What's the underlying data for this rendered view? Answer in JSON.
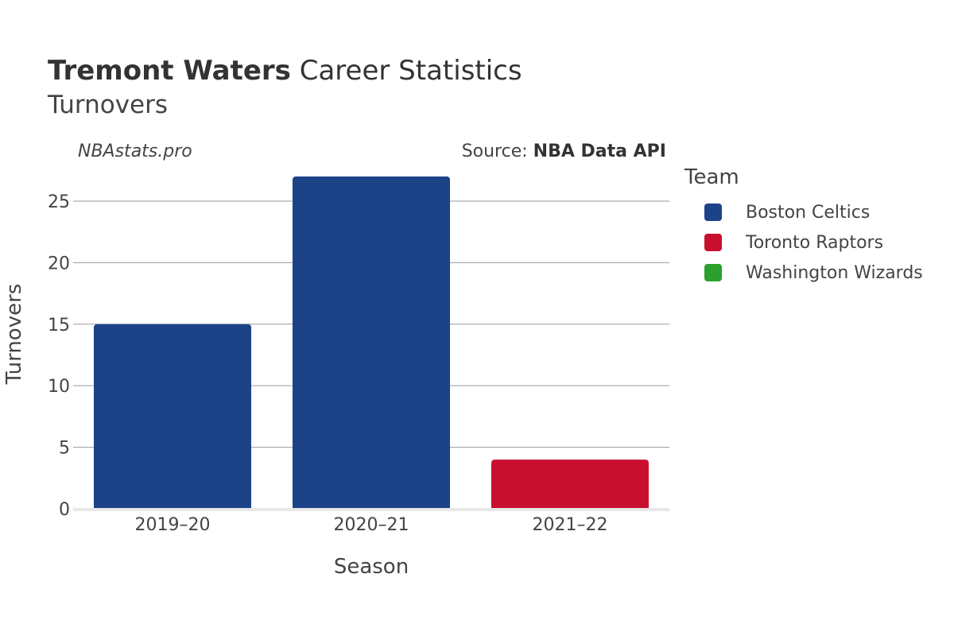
{
  "header": {
    "player": "Tremont Waters",
    "title_rest": "Career Statistics",
    "subtitle": "Turnovers"
  },
  "watermark": "NBAstats.pro",
  "source": {
    "prefix": "Source: ",
    "name": "NBA Data API"
  },
  "legend": {
    "title": "Team",
    "items": [
      {
        "label": "Boston Celtics",
        "color": "#1c4387"
      },
      {
        "label": "Toronto Raptors",
        "color": "#c8102e"
      },
      {
        "label": "Washington Wizards",
        "color": "#2ca02c"
      }
    ]
  },
  "chart_data": {
    "type": "bar",
    "title": "Tremont Waters Career Statistics",
    "subtitle": "Turnovers",
    "xlabel": "Season",
    "ylabel": "Turnovers",
    "categories": [
      "2019–20",
      "2020–21",
      "2021–22"
    ],
    "series": [
      {
        "name": "Boston Celtics",
        "color": "#1c4387",
        "values": [
          15,
          27,
          null
        ]
      },
      {
        "name": "Toronto Raptors",
        "color": "#c8102e",
        "values": [
          null,
          null,
          4
        ]
      },
      {
        "name": "Washington Wizards",
        "color": "#2ca02c",
        "values": [
          null,
          null,
          null
        ]
      }
    ],
    "ylim": [
      0,
      27
    ],
    "yticks": [
      0,
      5,
      10,
      15,
      20,
      25
    ],
    "grid": true,
    "legend_position": "right"
  }
}
